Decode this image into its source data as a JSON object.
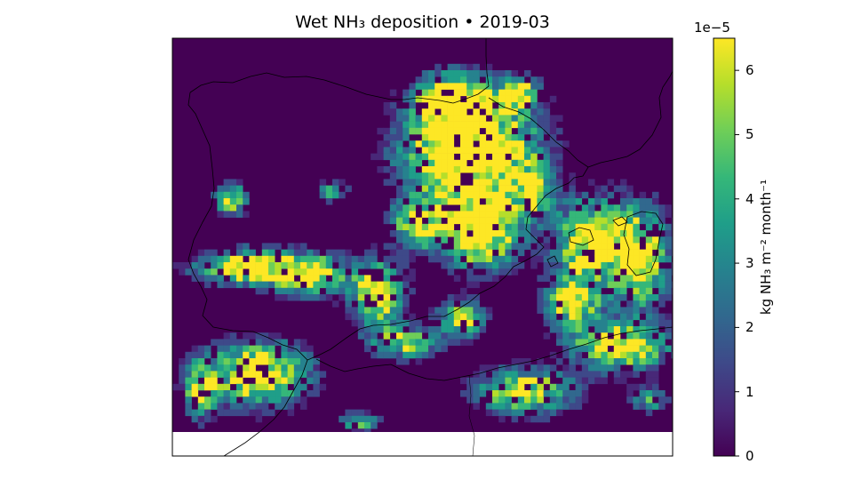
{
  "title": "Wet NH₃ deposition  •  2019-03",
  "colorbar": {
    "label": "kg NH₃ m⁻² month⁻¹",
    "offset_text": "1e−5",
    "min": 0,
    "max": 6.5,
    "ticks": [
      "0",
      "1",
      "2",
      "3",
      "4",
      "5",
      "6"
    ],
    "colormap": "viridis",
    "colors": [
      "#440154",
      "#482878",
      "#3e4989",
      "#31688e",
      "#26828e",
      "#1f9e89",
      "#35b779",
      "#6ece58",
      "#b5de2b",
      "#fde725"
    ]
  },
  "map": {
    "region": "Iberian Peninsula and Western Mediterranean",
    "background_color": "#440154",
    "no_data_color": "#ffffff",
    "coastline_color": "#000000"
  }
}
